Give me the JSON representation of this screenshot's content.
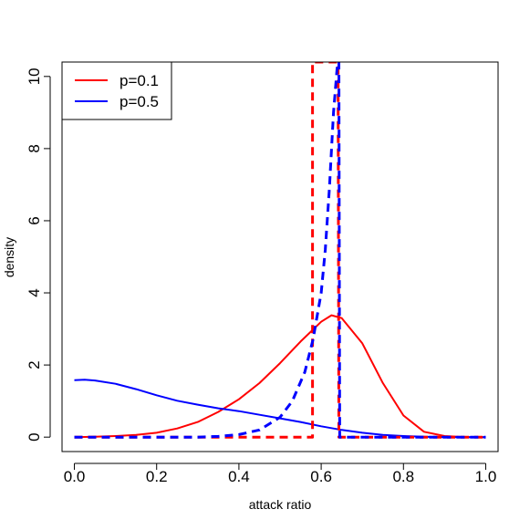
{
  "chart_data": {
    "type": "line",
    "title": "",
    "xlabel": "attack ratio",
    "ylabel": "density",
    "xlim": [
      -0.03,
      1.03
    ],
    "ylim": [
      -0.4,
      10.4
    ],
    "xticks": [
      0.0,
      0.2,
      0.4,
      0.6,
      0.8,
      1.0
    ],
    "xtick_labels": [
      "0.0",
      "0.2",
      "0.4",
      "0.6",
      "0.8",
      "1.0"
    ],
    "yticks": [
      0,
      2,
      4,
      6,
      8,
      10
    ],
    "ytick_labels": [
      "0",
      "2",
      "4",
      "6",
      "8",
      "10"
    ],
    "grid": false,
    "legend_position": "top-left",
    "legend": [
      {
        "label": "p=0.1",
        "color": "#ff0000"
      },
      {
        "label": "p=0.5",
        "color": "#0000ff"
      }
    ],
    "series": [
      {
        "legend_label": "p=0.1",
        "style": "solid",
        "color": "#ff0000",
        "x": [
          0.0,
          0.05,
          0.1,
          0.15,
          0.2,
          0.25,
          0.3,
          0.35,
          0.4,
          0.45,
          0.5,
          0.55,
          0.6,
          0.625,
          0.65,
          0.7,
          0.75,
          0.8,
          0.85,
          0.9,
          0.95,
          1.0
        ],
        "y": [
          0.0,
          0.01,
          0.03,
          0.06,
          0.12,
          0.24,
          0.42,
          0.7,
          1.05,
          1.5,
          2.05,
          2.65,
          3.2,
          3.38,
          3.3,
          2.6,
          1.5,
          0.6,
          0.15,
          0.03,
          0.0,
          0.0
        ]
      },
      {
        "legend_label": "p=0.5",
        "style": "solid",
        "color": "#0000ff",
        "x": [
          0.0,
          0.025,
          0.05,
          0.1,
          0.15,
          0.2,
          0.25,
          0.3,
          0.35,
          0.4,
          0.45,
          0.5,
          0.55,
          0.6,
          0.65,
          0.7,
          0.75,
          0.8,
          0.85,
          0.9,
          0.95,
          1.0
        ],
        "y": [
          1.58,
          1.59,
          1.57,
          1.48,
          1.33,
          1.16,
          1.01,
          0.9,
          0.8,
          0.72,
          0.62,
          0.52,
          0.42,
          0.3,
          0.2,
          0.12,
          0.06,
          0.03,
          0.01,
          0.0,
          0.0,
          0.0
        ]
      },
      {
        "style": "dashed",
        "color": "#ff0000",
        "x": [
          0.0,
          0.577,
          0.579,
          0.579,
          0.641,
          0.643,
          1.0
        ],
        "y": [
          0.0,
          0.0,
          0.0,
          10.4,
          10.4,
          0.0,
          0.0
        ]
      },
      {
        "style": "dashed",
        "color": "#0000ff",
        "x": [
          0.0,
          0.3,
          0.35,
          0.4,
          0.45,
          0.5,
          0.53,
          0.56,
          0.58,
          0.6,
          0.61,
          0.62,
          0.63,
          0.64,
          0.643,
          0.645,
          1.0
        ],
        "y": [
          0.0,
          0.0,
          0.02,
          0.07,
          0.2,
          0.55,
          1.0,
          1.8,
          2.7,
          4.0,
          5.2,
          6.9,
          9.0,
          10.4,
          10.4,
          0.0,
          0.0
        ]
      }
    ]
  }
}
